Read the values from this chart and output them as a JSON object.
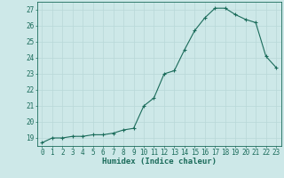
{
  "x": [
    0,
    1,
    2,
    3,
    4,
    5,
    6,
    7,
    8,
    9,
    10,
    11,
    12,
    13,
    14,
    15,
    16,
    17,
    18,
    19,
    20,
    21,
    22,
    23
  ],
  "y": [
    18.7,
    19.0,
    19.0,
    19.1,
    19.1,
    19.2,
    19.2,
    19.3,
    19.5,
    19.6,
    21.0,
    21.5,
    23.0,
    23.2,
    24.5,
    25.7,
    26.5,
    27.1,
    27.1,
    26.7,
    26.4,
    26.2,
    24.1,
    23.4
  ],
  "line_color": "#1a6b5a",
  "marker_color": "#1a6b5a",
  "bg_color": "#cde8e8",
  "grid_color": "#b8d8d8",
  "xlabel": "Humidex (Indice chaleur)",
  "ylim": [
    18.5,
    27.5
  ],
  "xlim": [
    -0.5,
    23.5
  ],
  "yticks": [
    19,
    20,
    21,
    22,
    23,
    24,
    25,
    26,
    27
  ],
  "xticks": [
    0,
    1,
    2,
    3,
    4,
    5,
    6,
    7,
    8,
    9,
    10,
    11,
    12,
    13,
    14,
    15,
    16,
    17,
    18,
    19,
    20,
    21,
    22,
    23
  ],
  "tick_color": "#1a6b5a",
  "label_fontsize": 6.5,
  "tick_fontsize": 5.5,
  "spine_color": "#1a6b5a"
}
